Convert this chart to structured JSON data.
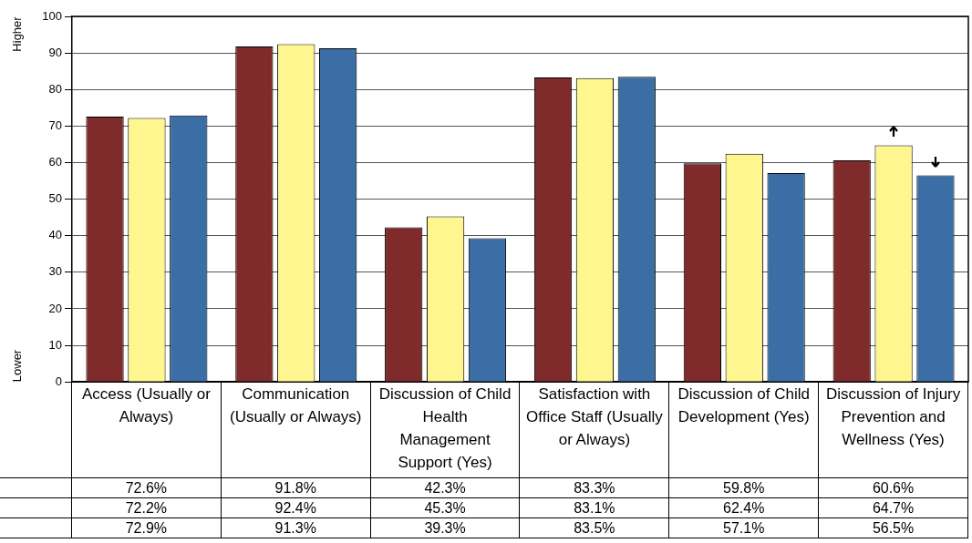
{
  "chart_data": {
    "type": "bar",
    "categories": [
      "Access (Usually or Always)",
      "Communication (Usually or Always)",
      "Discussion of Child Health Management Support (Yes)",
      "Satisfaction with Office Staff (Usually or Always)",
      "Discussion of Child Development (Yes)",
      "Discussion of Injury Prevention and Wellness (Yes)"
    ],
    "series": [
      {
        "color": "#7f2b2b",
        "values": [
          72.6,
          91.8,
          42.3,
          83.3,
          59.8,
          60.6
        ],
        "value_labels": [
          "72.6%",
          "91.8%",
          "42.3%",
          "83.3%",
          "59.8%",
          "60.6%"
        ]
      },
      {
        "color": "#fff68f",
        "values": [
          72.2,
          92.4,
          45.3,
          83.1,
          62.4,
          64.7
        ],
        "value_labels": [
          "72.2%",
          "92.4%",
          "45.3%",
          "83.1%",
          "62.4%",
          "64.7%"
        ]
      },
      {
        "color": "#3a6ea5",
        "values": [
          72.9,
          91.3,
          39.3,
          83.5,
          57.1,
          56.5
        ],
        "value_labels": [
          "72.9%",
          "91.3%",
          "39.3%",
          "83.5%",
          "57.1%",
          "56.5%"
        ]
      }
    ],
    "ylim": [
      0,
      100
    ],
    "yticks": [
      0,
      10,
      20,
      30,
      40,
      50,
      60,
      70,
      80,
      90,
      100
    ],
    "grid": "y",
    "legend": false,
    "annotations": [
      "Higher",
      "Lower"
    ]
  }
}
